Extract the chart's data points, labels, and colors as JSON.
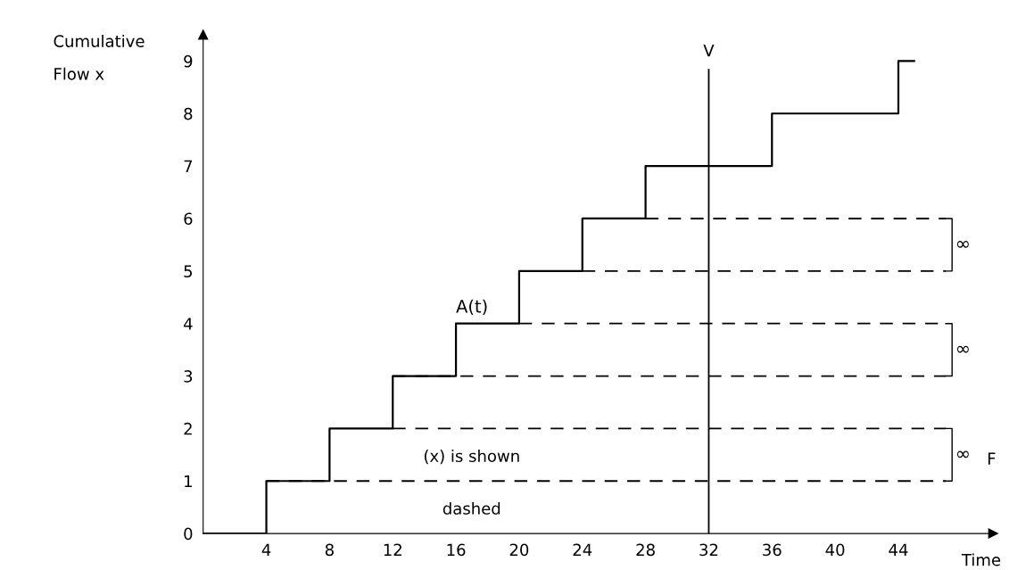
{
  "chart_data": {
    "type": "step",
    "xlabel": "Time",
    "ylabel": "Cumulative\nFlow x",
    "series": [
      {
        "color": "#000000",
        "line_style": "solid",
        "x": [
          0,
          4,
          8,
          12,
          16,
          20,
          24,
          28,
          36,
          44,
          45
        ],
        "values": [
          0,
          1,
          2,
          3,
          4,
          5,
          6,
          7,
          8,
          9,
          9
        ]
      },
      {
        "type": "line",
        "color": "#000000",
        "line_style": "dashed",
        "x": [
          4,
          47
        ],
        "values": [
          1,
          1
        ]
      },
      {
        "type": "line",
        "color": "#000000",
        "line_style": "dashed",
        "x": [
          12,
          47
        ],
        "values": [
          2,
          2
        ]
      },
      {
        "type": "line",
        "color": "#000000",
        "line_style": "dashed",
        "x": [
          12,
          47
        ],
        "values": [
          3,
          3
        ]
      },
      {
        "type": "line",
        "color": "#000000",
        "line_style": "dashed",
        "x": [
          20,
          47
        ],
        "values": [
          4,
          4
        ]
      },
      {
        "type": "line",
        "color": "#000000",
        "line_style": "dashed",
        "x": [
          24,
          47
        ],
        "values": [
          5,
          5
        ]
      },
      {
        "type": "line",
        "color": "#000000",
        "line_style": "dashed",
        "x": [
          28,
          47
        ],
        "values": [
          6,
          6
        ]
      }
    ],
    "xlim": [
      0,
      50
    ],
    "xticks": [
      4,
      8,
      12,
      16,
      20,
      24,
      28,
      32,
      36,
      40,
      44
    ],
    "ylim": [
      0,
      9.5
    ],
    "yticks": [
      0,
      1,
      2,
      3,
      4,
      5,
      6,
      7,
      8,
      9
    ],
    "ref_lines": [
      {
        "axis": "x",
        "value": 32,
        "label": "V",
        "color": "#000000",
        "line_style": "solid"
      }
    ],
    "annotations": [
      "A(t)",
      "∞",
      "∞",
      "∞",
      "(x) is shown",
      "dashed",
      "F"
    ],
    "grid": false
  }
}
